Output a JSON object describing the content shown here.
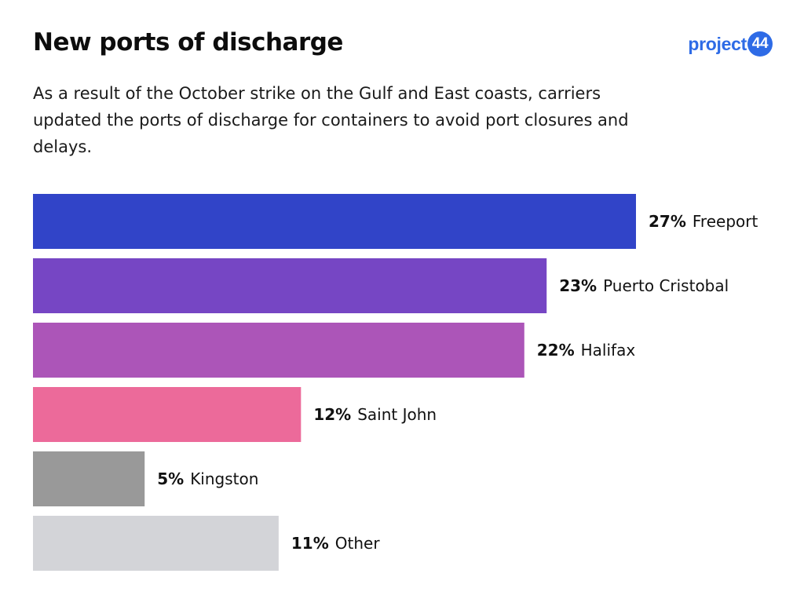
{
  "title": "New ports of discharge",
  "subtitle": "As a result of the October strike on the Gulf and East coasts, carriers updated the ports of discharge for containers to avoid port closures and delays.",
  "logo": {
    "text": "project",
    "badge": "44"
  },
  "chart_data": {
    "type": "bar",
    "orientation": "horizontal",
    "title": "New ports of discharge",
    "categories": [
      "Freeport",
      "Puerto Cristobal",
      "Halifax",
      "Saint John",
      "Kingston",
      "Other"
    ],
    "values": [
      27,
      23,
      22,
      12,
      5,
      11
    ],
    "value_labels": [
      "27%",
      "23%",
      "22%",
      "12%",
      "5%",
      "11%"
    ],
    "unit": "%",
    "colors": [
      "#3144c8",
      "#7646c4",
      "#ac55b8",
      "#ec6a9a",
      "#999999",
      "#d3d4d8"
    ],
    "xlim": [
      0,
      27
    ],
    "grid": false,
    "legend": "none"
  }
}
